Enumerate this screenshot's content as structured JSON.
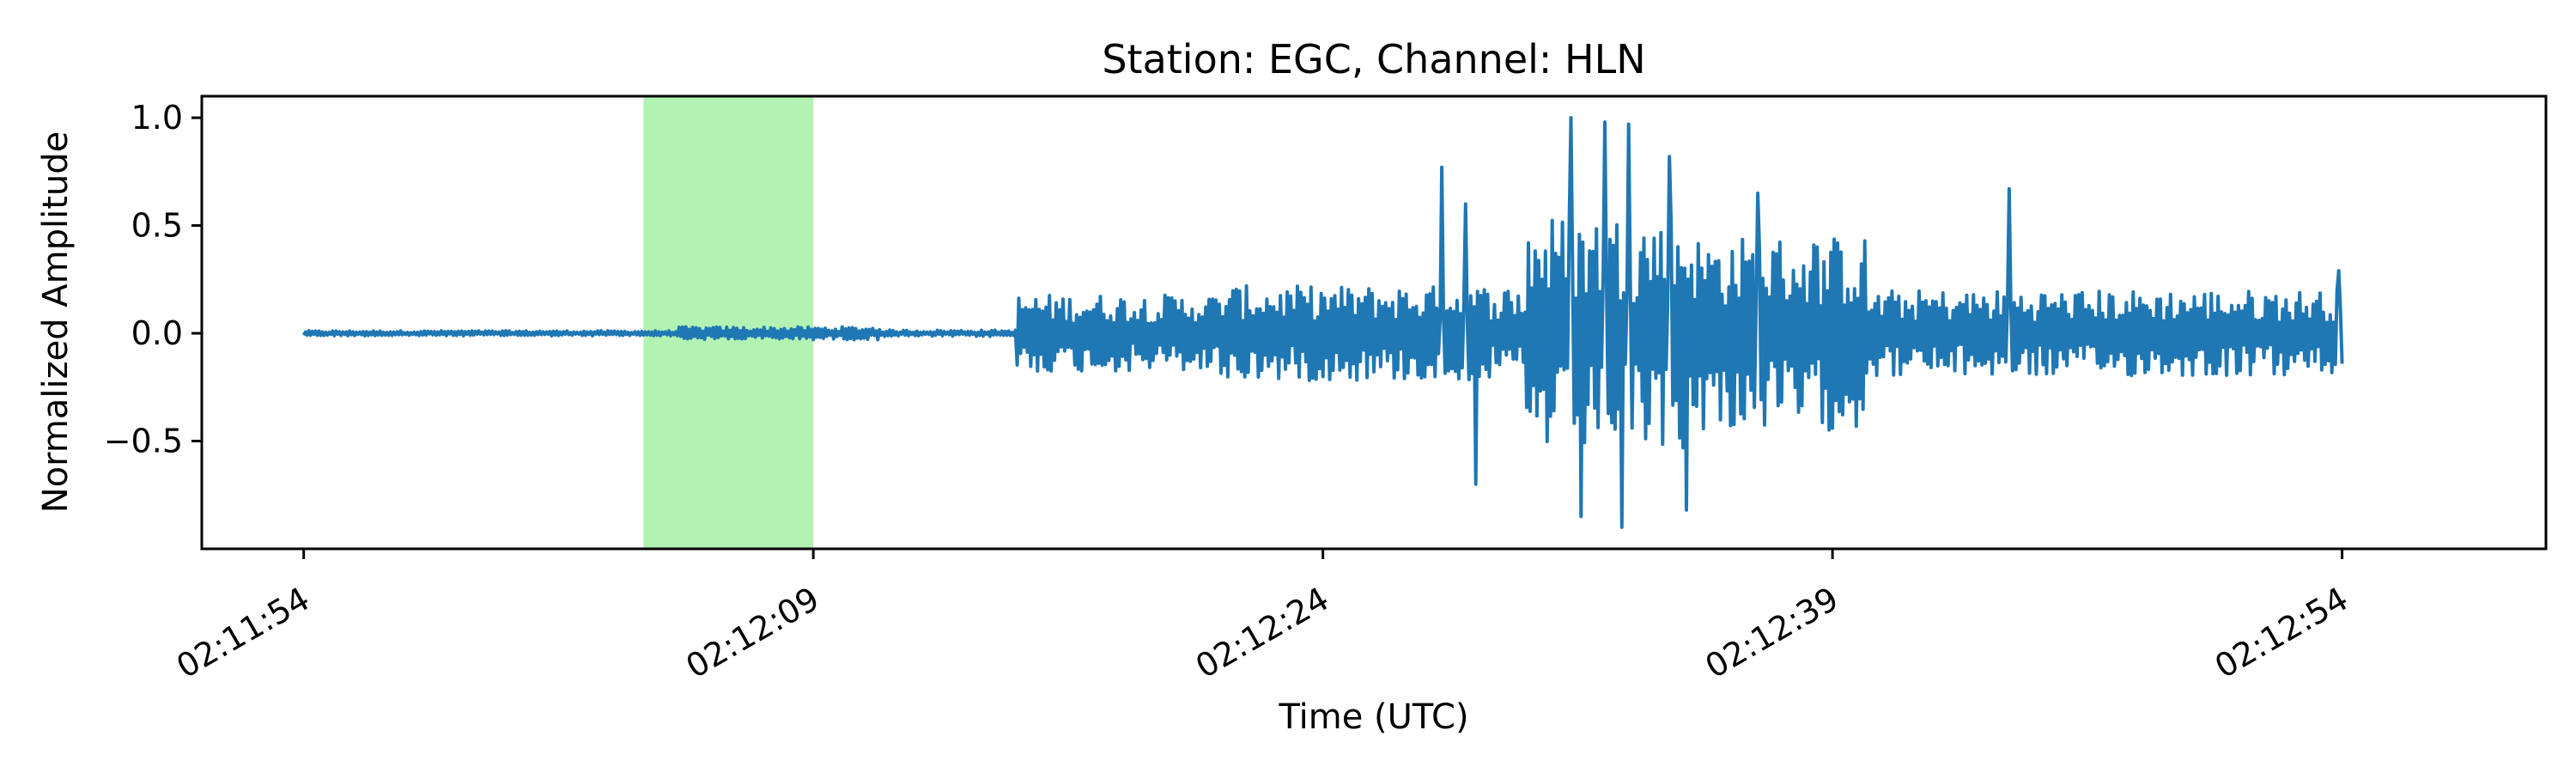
{
  "chart_data": {
    "type": "line",
    "title": "Station: EGC, Channel: HLN",
    "xlabel": "Time (UTC)",
    "ylabel": "Normalized Amplitude",
    "xlim": [
      "02:11:51",
      "02:13:00"
    ],
    "ylim": [
      -1.0,
      1.1
    ],
    "x_ticks": [
      "02:11:54",
      "02:12:09",
      "02:12:24",
      "02:12:39",
      "02:12:54"
    ],
    "y_ticks": [
      {
        "value": 1.0,
        "label": "1.0"
      },
      {
        "value": 0.5,
        "label": "0.5"
      },
      {
        "value": 0.0,
        "label": "0.0"
      },
      {
        "value": -0.5,
        "label": "−0.5"
      }
    ],
    "grid": false,
    "legend": "none",
    "series": [
      {
        "color": "#1f77b4",
        "segments": [
          {
            "start": "02:11:54",
            "end": "02:12:05",
            "envelope": 0.012
          },
          {
            "start": "02:12:05",
            "end": "02:12:11",
            "envelope": 0.03
          },
          {
            "start": "02:12:11",
            "end": "02:12:15",
            "envelope": 0.015
          },
          {
            "start": "02:12:15",
            "end": "02:12:21",
            "envelope": 0.18
          },
          {
            "start": "02:12:21",
            "end": "02:12:30",
            "envelope": 0.22
          },
          {
            "start": "02:12:30",
            "end": "02:12:35",
            "envelope": 0.55
          },
          {
            "start": "02:12:35",
            "end": "02:12:40",
            "envelope": 0.45
          },
          {
            "start": "02:12:40",
            "end": "02:12:54",
            "envelope": 0.2
          }
        ],
        "peaks": [
          {
            "time": "02:12:27.50",
            "value": 0.77
          },
          {
            "time": "02:12:28.20",
            "value": 0.6
          },
          {
            "time": "02:12:28.50",
            "value": -0.7
          },
          {
            "time": "02:12:31.30",
            "value": 1.0
          },
          {
            "time": "02:12:31.60",
            "value": -0.85
          },
          {
            "time": "02:12:32.30",
            "value": 0.98
          },
          {
            "time": "02:12:32.80",
            "value": -0.9
          },
          {
            "time": "02:12:33.00",
            "value": 0.97
          },
          {
            "time": "02:12:34.20",
            "value": 0.82
          },
          {
            "time": "02:12:34.70",
            "value": -0.82
          },
          {
            "time": "02:12:36.80",
            "value": 0.65
          },
          {
            "time": "02:12:44.20",
            "value": 0.67
          },
          {
            "time": "02:12:53.90",
            "value": 0.29
          }
        ]
      }
    ],
    "highlight": {
      "start": "02:12:04",
      "end": "02:12:09",
      "color": "#b2f2b2"
    }
  }
}
